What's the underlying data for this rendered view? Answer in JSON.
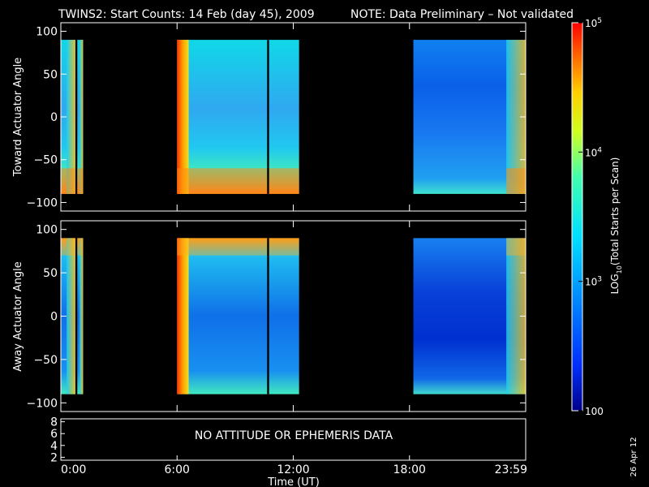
{
  "title": {
    "main": "TWINS2: Start Counts: 14 Feb (day  45), 2009",
    "note": "NOTE: Data Preliminary – Not validated",
    "note_color": "#ff2020"
  },
  "stamp": "26 Apr 12",
  "no_data_text": "NO ATTITUDE OR EPHEMERIS DATA",
  "chart_data": [
    {
      "type": "heatmap",
      "panel": "toward",
      "ylabel": "Toward Actuator Angle",
      "ylim": [
        -110,
        110
      ],
      "yticks": [
        "100",
        "50",
        "0",
        "−50",
        "−100"
      ],
      "ytick_values": [
        100,
        50,
        0,
        -50,
        -100
      ],
      "data_y_range": [
        -90,
        90
      ],
      "data_blocks_hours": [
        [
          0.0,
          0.75
        ],
        [
          0.85,
          1.15
        ],
        [
          6.0,
          12.3
        ],
        [
          18.2,
          24.0
        ]
      ],
      "data_gap_hours": [
        10.65,
        10.75
      ]
    },
    {
      "type": "heatmap",
      "panel": "away",
      "ylabel": "Away Actuator Angle",
      "ylim": [
        -110,
        110
      ],
      "yticks": [
        "100",
        "50",
        "0",
        "−50",
        "−100"
      ],
      "ytick_values": [
        100,
        50,
        0,
        -50,
        -100
      ],
      "data_y_range": [
        -90,
        90
      ],
      "data_blocks_hours": [
        [
          0.0,
          0.75
        ],
        [
          0.85,
          1.15
        ],
        [
          6.0,
          12.3
        ],
        [
          18.2,
          24.0
        ]
      ],
      "data_gap_hours": [
        10.65,
        10.75
      ]
    },
    {
      "type": "line",
      "panel": "ephemeris",
      "ylim": [
        1.5,
        8.5
      ],
      "yticks": [
        "8",
        "6",
        "4",
        "2"
      ],
      "ytick_values": [
        8,
        6,
        4,
        2
      ]
    }
  ],
  "xaxis": {
    "label": "Time (UT)",
    "xlim_hours": [
      0,
      24
    ],
    "ticks": [
      "0:00",
      "6:00",
      "12:00",
      "18:00",
      "23:59"
    ],
    "tick_values_hours": [
      0,
      6,
      12,
      18,
      24
    ]
  },
  "colorbar": {
    "label": "LOG10(Total Starts per Scan)",
    "label_base": "LOG",
    "label_sub": "10",
    "label_rest": "(Total Starts per Scan)",
    "scale": "log",
    "range": [
      100,
      100000
    ],
    "ticks": [
      {
        "value": 100000,
        "mantissa": "10",
        "exp": "5"
      },
      {
        "value": 10000,
        "mantissa": "10",
        "exp": "4"
      },
      {
        "value": 1000,
        "mantissa": "10",
        "exp": "3"
      },
      {
        "value": 100,
        "mantissa": "100",
        "exp": ""
      }
    ]
  }
}
